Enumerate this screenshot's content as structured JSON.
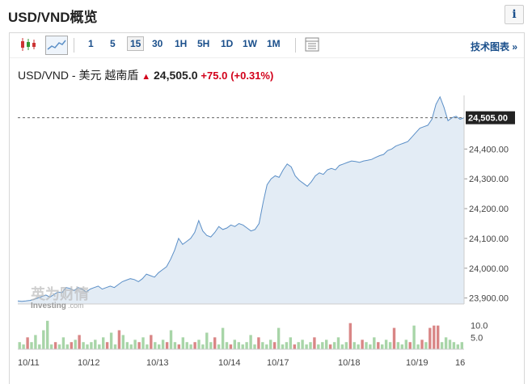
{
  "page": {
    "title": "USD/VND概览",
    "info_label": "i"
  },
  "toolbar": {
    "timeframes": [
      "1",
      "5",
      "15",
      "30",
      "1H",
      "5H",
      "1D",
      "1W",
      "1M"
    ],
    "active_timeframe": "15",
    "tech_chart_link": "技术图表 »",
    "icons": [
      "candlestick-chart-icon",
      "area-chart-icon",
      "table-view-icon"
    ]
  },
  "header": {
    "pair": "USD/VND - 美元 越南盾",
    "price": "24,505.0",
    "change": "+75.0",
    "change_pct": "(+0.31%)",
    "direction_icon": "up-arrow-icon"
  },
  "watermark": {
    "cn": "英为财情",
    "en": "Investing",
    "suffix": ".com"
  },
  "colors": {
    "line": "#5b8fc7",
    "fill": "#e3ecf5",
    "up_volume": "#a8d5a8",
    "down_volume": "#d98686",
    "change": "#d2001a"
  },
  "chart_data": {
    "type": "area",
    "last_price_label": "24,505.00",
    "last_price": 24505,
    "ylim": [
      23880,
      24580
    ],
    "y_ticks": [
      {
        "label": "24,400.00",
        "value": 24400
      },
      {
        "label": "24,300.00",
        "value": 24300
      },
      {
        "label": "24,200.00",
        "value": 24200
      },
      {
        "label": "24,100.00",
        "value": 24100
      },
      {
        "label": "24,000.00",
        "value": 24000
      },
      {
        "label": "23,900.00",
        "value": 23900
      }
    ],
    "x_labels": [
      "10/11",
      "10/12",
      "10/13",
      "10/14",
      "10/17",
      "10/18",
      "10/19",
      "16"
    ],
    "series": [
      23890,
      23889,
      23890,
      23892,
      23895,
      23900,
      23905,
      23910,
      23903,
      23912,
      23920,
      23918,
      23935,
      23932,
      23925,
      23935,
      23930,
      23920,
      23930,
      23935,
      23940,
      23930,
      23935,
      23940,
      23935,
      23945,
      23955,
      23960,
      23965,
      23962,
      23955,
      23965,
      23980,
      23975,
      23970,
      23985,
      23995,
      24005,
      24030,
      24060,
      24100,
      24080,
      24090,
      24100,
      24120,
      24160,
      24125,
      24110,
      24105,
      24120,
      24140,
      24130,
      24135,
      24145,
      24140,
      24150,
      24145,
      24135,
      24125,
      24130,
      24150,
      24220,
      24280,
      24300,
      24310,
      24305,
      24330,
      24350,
      24340,
      24310,
      24295,
      24285,
      24275,
      24290,
      24310,
      24320,
      24315,
      24330,
      24335,
      24330,
      24345,
      24350,
      24355,
      24360,
      24358,
      24355,
      24360,
      24362,
      24365,
      24372,
      24378,
      24382,
      24395,
      24400,
      24410,
      24415,
      24420,
      24425,
      24440,
      24455,
      24470,
      24475,
      24480,
      24500,
      24550,
      24575,
      24540,
      24495,
      24505,
      24510,
      24500,
      24505
    ],
    "volume_ticks": [
      {
        "label": "10.0",
        "value": 10
      },
      {
        "label": "5.0",
        "value": 5
      }
    ],
    "volume_max": 15,
    "volume": [
      {
        "v": 3,
        "up": true
      },
      {
        "v": 2,
        "up": true
      },
      {
        "v": 5,
        "up": false
      },
      {
        "v": 3,
        "up": true
      },
      {
        "v": 6,
        "up": true
      },
      {
        "v": 2,
        "up": true
      },
      {
        "v": 8,
        "up": true
      },
      {
        "v": 12,
        "up": true
      },
      {
        "v": 2,
        "up": true
      },
      {
        "v": 3,
        "up": false
      },
      {
        "v": 2,
        "up": true
      },
      {
        "v": 5,
        "up": true
      },
      {
        "v": 2,
        "up": true
      },
      {
        "v": 3,
        "up": false
      },
      {
        "v": 4,
        "up": true
      },
      {
        "v": 6,
        "up": false
      },
      {
        "v": 3,
        "up": true
      },
      {
        "v": 2,
        "up": true
      },
      {
        "v": 3,
        "up": true
      },
      {
        "v": 4,
        "up": true
      },
      {
        "v": 2,
        "up": true
      },
      {
        "v": 5,
        "up": true
      },
      {
        "v": 3,
        "up": false
      },
      {
        "v": 7,
        "up": true
      },
      {
        "v": 2,
        "up": true
      },
      {
        "v": 8,
        "up": false
      },
      {
        "v": 6,
        "up": true
      },
      {
        "v": 3,
        "up": true
      },
      {
        "v": 2,
        "up": true
      },
      {
        "v": 4,
        "up": true
      },
      {
        "v": 3,
        "up": false
      },
      {
        "v": 5,
        "up": true
      },
      {
        "v": 2,
        "up": true
      },
      {
        "v": 6,
        "up": false
      },
      {
        "v": 3,
        "up": true
      },
      {
        "v": 2,
        "up": true
      },
      {
        "v": 4,
        "up": true
      },
      {
        "v": 3,
        "up": false
      },
      {
        "v": 8,
        "up": true
      },
      {
        "v": 3,
        "up": true
      },
      {
        "v": 2,
        "up": false
      },
      {
        "v": 5,
        "up": true
      },
      {
        "v": 3,
        "up": true
      },
      {
        "v": 2,
        "up": true
      },
      {
        "v": 3,
        "up": false
      },
      {
        "v": 4,
        "up": true
      },
      {
        "v": 2,
        "up": true
      },
      {
        "v": 7,
        "up": true
      },
      {
        "v": 3,
        "up": true
      },
      {
        "v": 5,
        "up": false
      },
      {
        "v": 2,
        "up": true
      },
      {
        "v": 9,
        "up": true
      },
      {
        "v": 3,
        "up": true
      },
      {
        "v": 2,
        "up": false
      },
      {
        "v": 4,
        "up": true
      },
      {
        "v": 3,
        "up": true
      },
      {
        "v": 2,
        "up": true
      },
      {
        "v": 3,
        "up": true
      },
      {
        "v": 6,
        "up": true
      },
      {
        "v": 2,
        "up": true
      },
      {
        "v": 5,
        "up": false
      },
      {
        "v": 3,
        "up": true
      },
      {
        "v": 2,
        "up": true
      },
      {
        "v": 4,
        "up": true
      },
      {
        "v": 3,
        "up": false
      },
      {
        "v": 9,
        "up": true
      },
      {
        "v": 2,
        "up": true
      },
      {
        "v": 3,
        "up": true
      },
      {
        "v": 5,
        "up": true
      },
      {
        "v": 2,
        "up": false
      },
      {
        "v": 3,
        "up": true
      },
      {
        "v": 4,
        "up": true
      },
      {
        "v": 2,
        "up": true
      },
      {
        "v": 3,
        "up": true
      },
      {
        "v": 5,
        "up": false
      },
      {
        "v": 2,
        "up": true
      },
      {
        "v": 3,
        "up": true
      },
      {
        "v": 4,
        "up": true
      },
      {
        "v": 2,
        "up": false
      },
      {
        "v": 3,
        "up": true
      },
      {
        "v": 5,
        "up": true
      },
      {
        "v": 2,
        "up": true
      },
      {
        "v": 3,
        "up": true
      },
      {
        "v": 11,
        "up": false
      },
      {
        "v": 3,
        "up": true
      },
      {
        "v": 2,
        "up": true
      },
      {
        "v": 4,
        "up": false
      },
      {
        "v": 3,
        "up": true
      },
      {
        "v": 2,
        "up": true
      },
      {
        "v": 5,
        "up": true
      },
      {
        "v": 3,
        "up": false
      },
      {
        "v": 2,
        "up": true
      },
      {
        "v": 4,
        "up": true
      },
      {
        "v": 3,
        "up": true
      },
      {
        "v": 9,
        "up": false
      },
      {
        "v": 3,
        "up": true
      },
      {
        "v": 2,
        "up": true
      },
      {
        "v": 4,
        "up": true
      },
      {
        "v": 3,
        "up": false
      },
      {
        "v": 10,
        "up": true
      },
      {
        "v": 2,
        "up": true
      },
      {
        "v": 4,
        "up": false
      },
      {
        "v": 3,
        "up": true
      },
      {
        "v": 9,
        "up": false
      },
      {
        "v": 10,
        "up": false
      },
      {
        "v": 10,
        "up": false
      },
      {
        "v": 3,
        "up": true
      },
      {
        "v": 5,
        "up": true
      },
      {
        "v": 4,
        "up": true
      },
      {
        "v": 3,
        "up": true
      },
      {
        "v": 2,
        "up": true
      },
      {
        "v": 3,
        "up": true
      }
    ]
  }
}
